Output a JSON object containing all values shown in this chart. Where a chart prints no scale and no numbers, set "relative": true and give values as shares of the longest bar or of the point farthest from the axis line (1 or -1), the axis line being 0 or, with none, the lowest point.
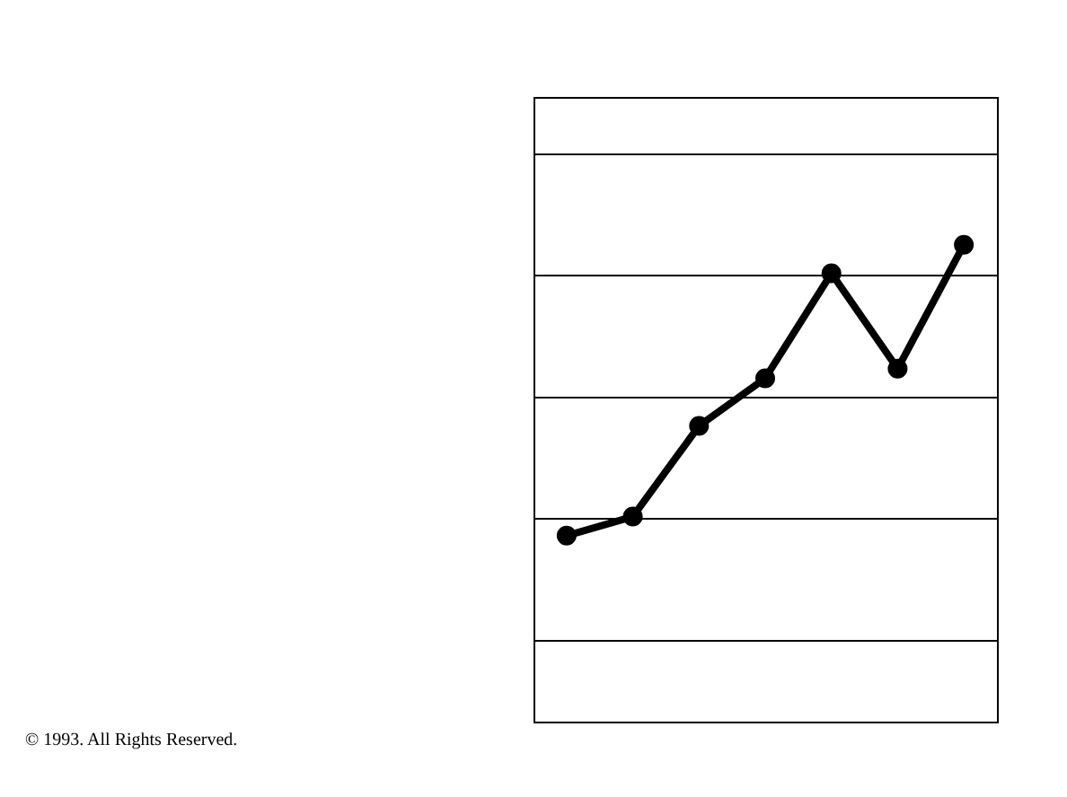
{
  "chart_data": {
    "type": "line",
    "categories": [
      null,
      null,
      null,
      null,
      null,
      null,
      null
    ],
    "series": [
      {
        "color": "#000000",
        "values": [
          0.39,
          0.43,
          0.62,
          0.72,
          0.94,
          0.74,
          1
        ]
      }
    ],
    "relative": true,
    "grid": "y",
    "marker": "circle",
    "annotations": [
      "© 1993. All Rights Reserved."
    ]
  }
}
